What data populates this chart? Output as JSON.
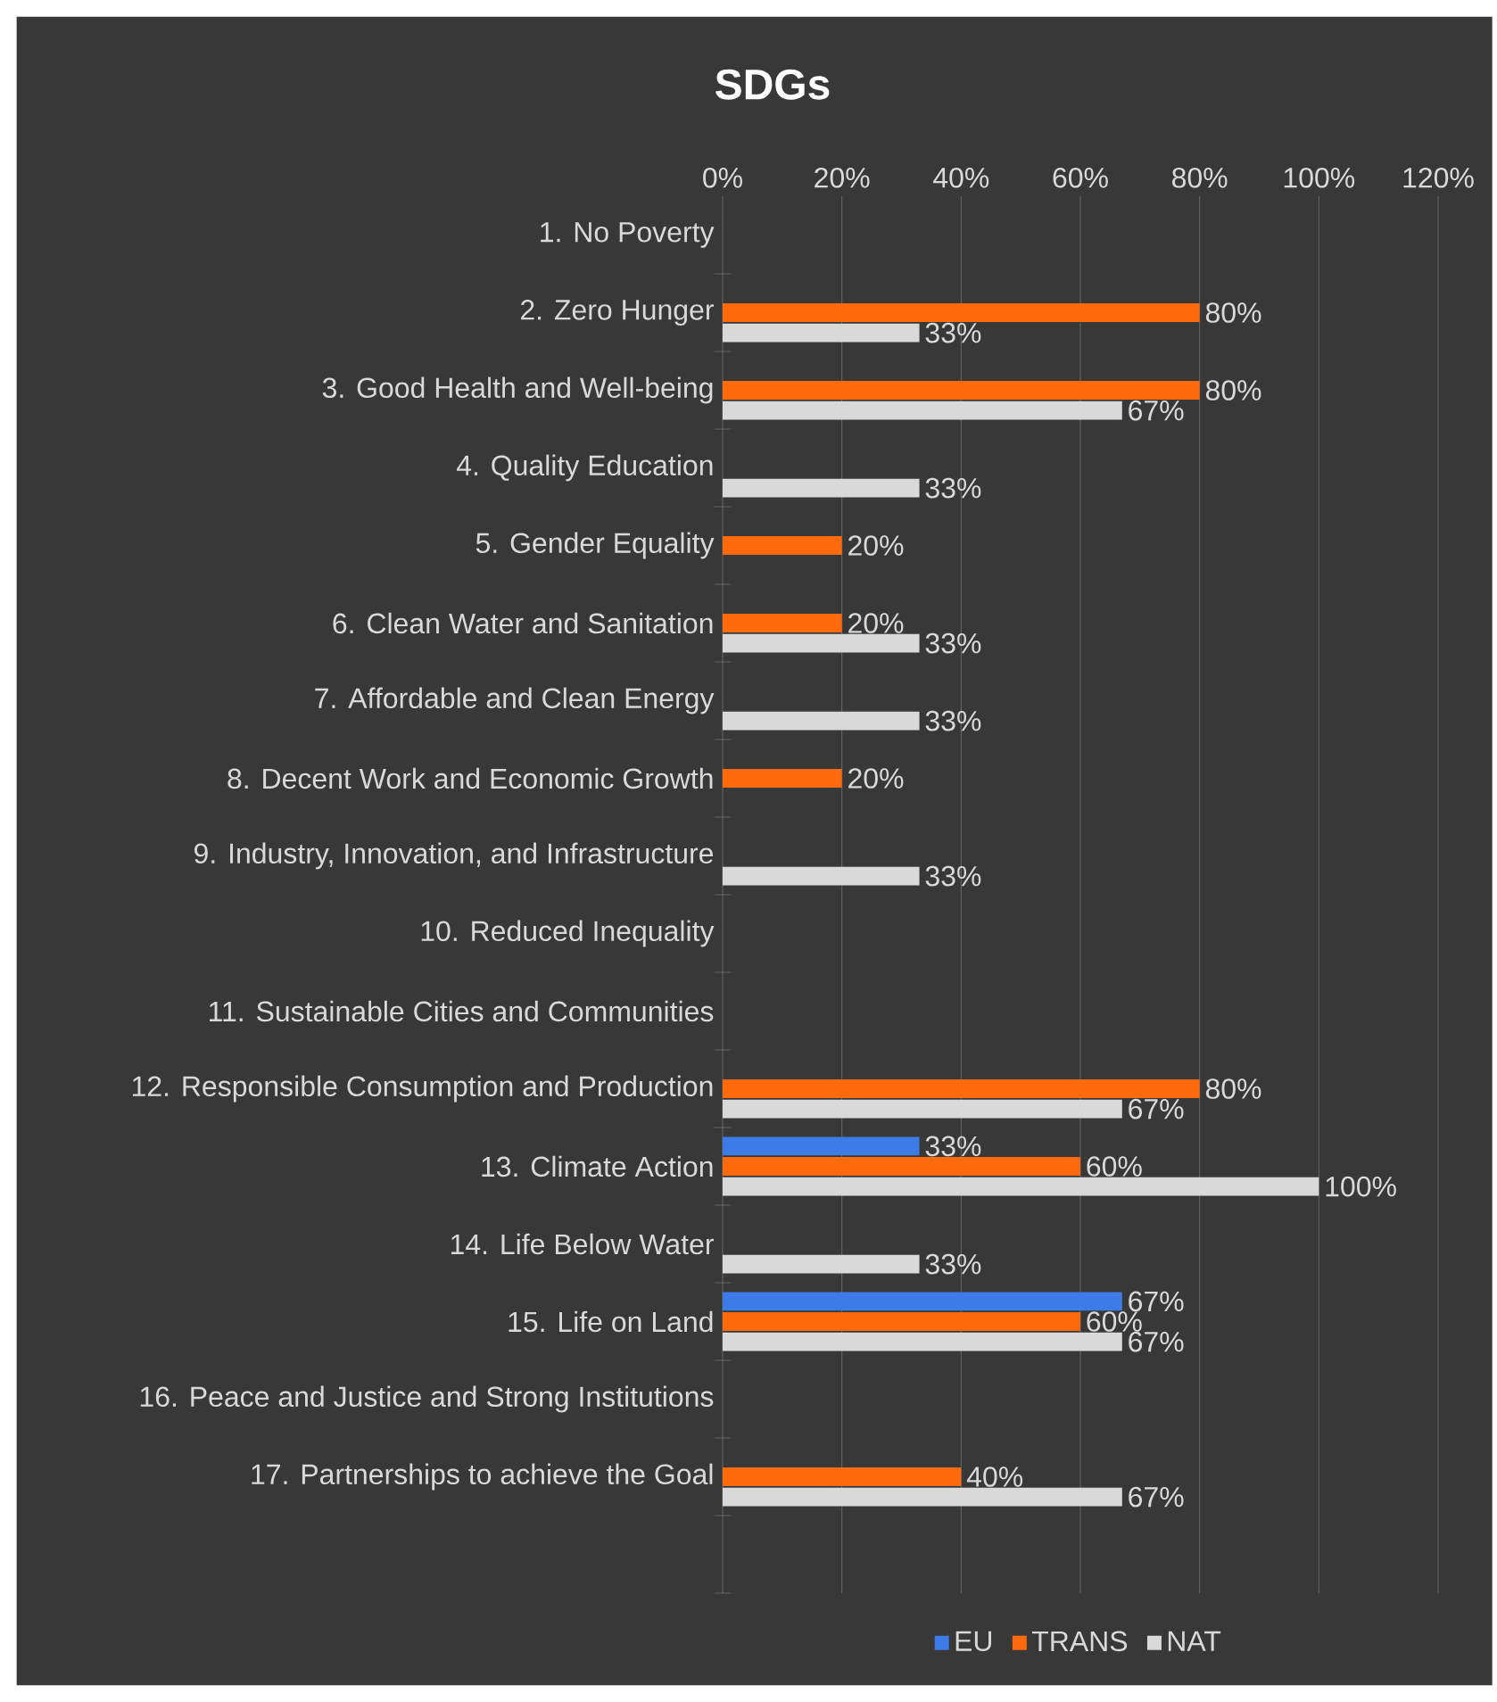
{
  "chart_data": {
    "type": "bar",
    "orientation": "horizontal",
    "title": "SDGs",
    "categories": [
      "1. No Poverty",
      "2. Zero Hunger",
      "3. Good Health and Well-being",
      "4. Quality Education",
      "5. Gender Equality",
      "6. Clean Water and Sanitation",
      "7. Affordable and Clean Energy",
      "8. Decent Work and Economic Growth",
      "9. Industry, Innovation, and Infrastructure",
      "10. Reduced Inequality",
      "11. Sustainable Cities and Communities",
      "12. Responsible Consumption and Production",
      "13. Climate Action",
      "14. Life Below Water",
      "15. Life on Land",
      "16. Peace and Justice and Strong Institutions",
      "17. Partnerships to achieve the Goal"
    ],
    "series": [
      {
        "name": "EU",
        "color": "#3d7be6",
        "values": [
          null,
          null,
          null,
          null,
          null,
          null,
          null,
          null,
          null,
          null,
          null,
          null,
          33,
          null,
          67,
          null,
          null
        ],
        "value_labels": [
          null,
          null,
          null,
          null,
          null,
          null,
          null,
          null,
          null,
          null,
          null,
          null,
          "33%",
          null,
          "67%",
          null,
          null
        ]
      },
      {
        "name": "TRANS",
        "color": "#ff6a0d",
        "values": [
          null,
          80,
          80,
          null,
          20,
          20,
          null,
          20,
          null,
          null,
          null,
          80,
          60,
          null,
          60,
          null,
          40
        ],
        "value_labels": [
          null,
          "80%",
          "80%",
          null,
          "20%",
          "20%",
          null,
          "20%",
          null,
          null,
          null,
          "80%",
          "60%",
          null,
          "60%",
          null,
          "40%"
        ]
      },
      {
        "name": "NAT",
        "color": "#d9d9d9",
        "values": [
          null,
          33,
          67,
          33,
          null,
          33,
          33,
          null,
          33,
          null,
          null,
          67,
          100,
          33,
          67,
          null,
          67
        ],
        "value_labels": [
          null,
          "33%",
          "67%",
          "33%",
          null,
          "33%",
          "33%",
          null,
          "33%",
          null,
          null,
          "67%",
          "100%",
          "33%",
          "67%",
          null,
          "67%"
        ]
      }
    ],
    "xlim": [
      0,
      120
    ],
    "xticks": [
      {
        "value": 0,
        "label": "0%"
      },
      {
        "value": 20,
        "label": "20%"
      },
      {
        "value": 40,
        "label": "40%"
      },
      {
        "value": 60,
        "label": "60%"
      },
      {
        "value": 80,
        "label": "80%"
      },
      {
        "value": 100,
        "label": "100%"
      },
      {
        "value": 120,
        "label": "120%"
      }
    ],
    "grid": "x",
    "legend": "bottom"
  }
}
